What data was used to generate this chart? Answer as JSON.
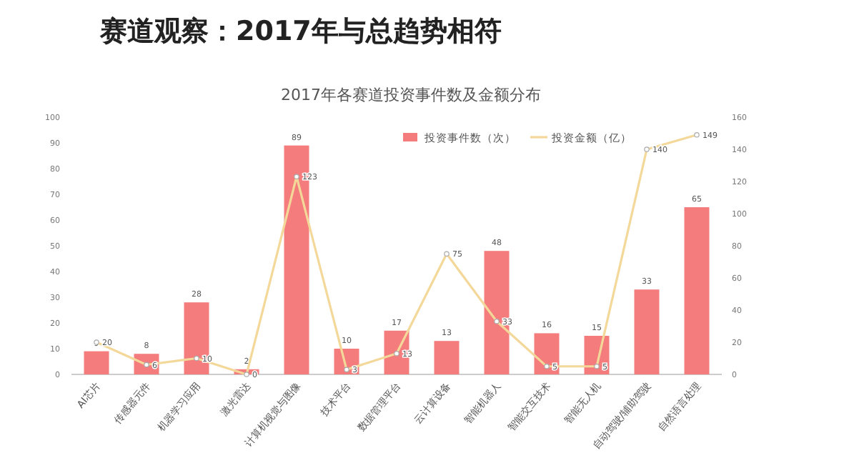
{
  "chart_data": {
    "type": "bar",
    "title": "赛道观察：2017年与总趋势相符",
    "subtitle": "2017年各赛道投资事件数及金额分布",
    "categories": [
      "AI芯片",
      "传感器元件",
      "机器学习应用",
      "激光雷达",
      "计算机视觉与图像",
      "技术平台",
      "数据管理平台",
      "云计算设备",
      "智能机器人",
      "智能交互技术",
      "智能无人机",
      "自动驾驶/辅助驾驶",
      "自然语言处理"
    ],
    "series": [
      {
        "name": "投资事件数（次）",
        "color": "#f47c7c",
        "values": [
          9,
          8,
          28,
          2,
          89,
          10,
          17,
          13,
          48,
          16,
          15,
          33,
          65
        ]
      },
      {
        "name": "投资金额（亿）",
        "type": "line",
        "axis": "y2",
        "color": "#f3d89a",
        "marker": "circle",
        "values": [
          20,
          6,
          10,
          0,
          123,
          3,
          13,
          75,
          33,
          5,
          5,
          140,
          149
        ]
      }
    ],
    "ylim": [
      0,
      100
    ],
    "yticks": [
      0,
      10,
      20,
      30,
      40,
      50,
      60,
      70,
      80,
      90,
      100
    ],
    "y2lim": [
      0,
      160
    ],
    "y2ticks": [
      0,
      20,
      40,
      60,
      80,
      100,
      120,
      140,
      160
    ],
    "data_labels": true,
    "grid": false,
    "legend": "top right"
  }
}
